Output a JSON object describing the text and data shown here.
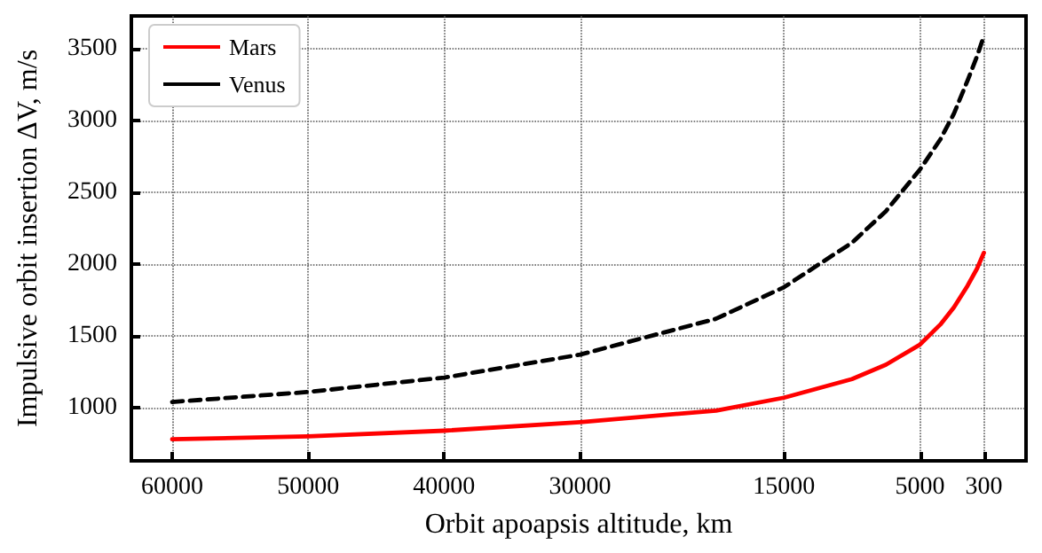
{
  "chart_data": {
    "type": "line",
    "xlabel": "Orbit apoapsis altitude, km",
    "ylabel": "Impulsive orbit insertion ΔV, m/s",
    "xlim": [
      63000,
      -2800
    ],
    "xticks": [
      60000,
      50000,
      40000,
      30000,
      15000,
      5000,
      300
    ],
    "ylim": [
      630,
      3730
    ],
    "yticks": [
      1000,
      1500,
      2000,
      2500,
      3000,
      3500
    ],
    "grid": true,
    "legend": "top left",
    "marker": "none",
    "series": [
      {
        "name": "Mars",
        "color": "#ff0000",
        "line_style": "solid",
        "x": [
          60000,
          50000,
          40000,
          30000,
          20000,
          15000,
          10000,
          7500,
          5000,
          3500,
          2500,
          1500,
          800,
          300
        ],
        "values": [
          780,
          800,
          840,
          900,
          980,
          1070,
          1200,
          1300,
          1440,
          1580,
          1700,
          1850,
          1970,
          2080
        ]
      },
      {
        "name": "Venus",
        "color": "#000000",
        "line_style": "dashed",
        "x": [
          60000,
          50000,
          40000,
          30000,
          20000,
          15000,
          10000,
          7500,
          5000,
          3500,
          2500,
          1500,
          800,
          300
        ],
        "values": [
          1040,
          1110,
          1210,
          1370,
          1620,
          1840,
          2150,
          2370,
          2660,
          2870,
          3050,
          3280,
          3450,
          3590
        ]
      }
    ]
  }
}
